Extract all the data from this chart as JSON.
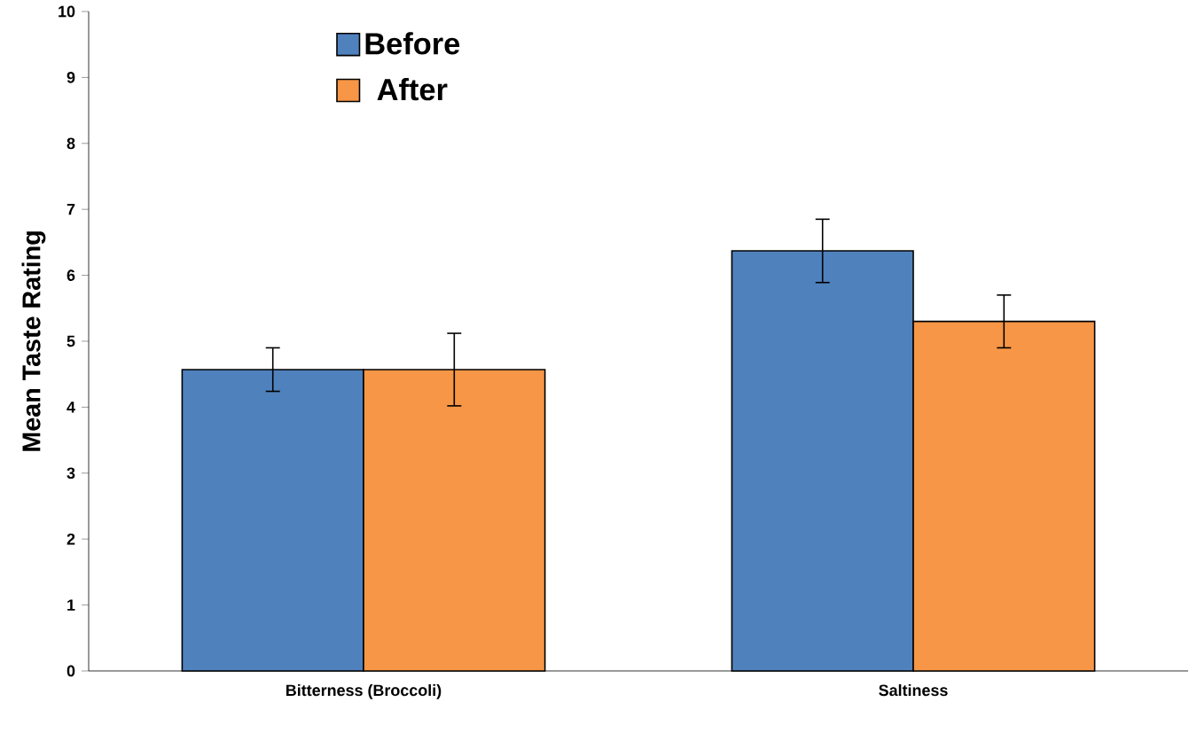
{
  "chart_data": {
    "type": "bar",
    "ylabel": "Mean Taste Rating",
    "categories": [
      "Bitterness (Broccoli)",
      "Saltiness"
    ],
    "series": [
      {
        "name": "Before",
        "color": "#4f81bd",
        "values": [
          4.57,
          6.37
        ],
        "errors": [
          0.33,
          0.48
        ]
      },
      {
        "name": "After",
        "color": "#f79646",
        "values": [
          4.57,
          5.3
        ],
        "errors": [
          0.55,
          0.4
        ]
      }
    ],
    "ylim": [
      0,
      10
    ],
    "yticks": [
      0,
      1,
      2,
      3,
      4,
      5,
      6,
      7,
      8,
      9,
      10
    ],
    "grid": false,
    "legend": "top left"
  }
}
